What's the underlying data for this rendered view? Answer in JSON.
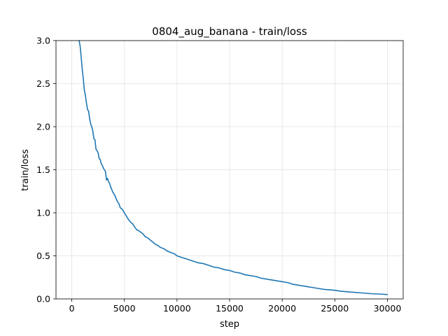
{
  "chart_data": {
    "type": "line",
    "title": "0804_aug_banana - train/loss",
    "xlabel": "step",
    "ylabel": "train/loss",
    "xlim": [
      -1500,
      31500
    ],
    "ylim": [
      0,
      3.0
    ],
    "grid": true,
    "x_ticks": [
      0,
      5000,
      10000,
      15000,
      20000,
      25000,
      30000
    ],
    "y_ticks": [
      0.0,
      0.5,
      1.0,
      1.5,
      2.0,
      2.5,
      3.0
    ],
    "x_tick_labels": [
      "0",
      "5000",
      "10000",
      "15000",
      "20000",
      "25000",
      "30000"
    ],
    "y_tick_labels": [
      "0.0",
      "0.5",
      "1.0",
      "1.5",
      "2.0",
      "2.5",
      "3.0"
    ],
    "series": [
      {
        "color": "#1f77b4",
        "x": [
          700,
          800,
          900,
          1000,
          1100,
          1200,
          1300,
          1400,
          1500,
          1600,
          1700,
          1800,
          1900,
          2000,
          2100,
          2200,
          2300,
          2400,
          2500,
          2600,
          2700,
          2800,
          2900,
          3000,
          3100,
          3200,
          3300,
          3400,
          3500,
          3600,
          3700,
          3800,
          3900,
          4000,
          4100,
          4200,
          4300,
          4400,
          4500,
          4600,
          4700,
          4800,
          4900,
          5000,
          5200,
          5400,
          5600,
          5800,
          6000,
          6200,
          6400,
          6600,
          6800,
          7000,
          7200,
          7400,
          7600,
          7800,
          8000,
          8200,
          8400,
          8600,
          8800,
          9000,
          9200,
          9400,
          9600,
          9800,
          10000,
          10500,
          11000,
          11500,
          12000,
          12500,
          13000,
          13500,
          14000,
          14500,
          15000,
          15500,
          16000,
          16500,
          17000,
          17500,
          18000,
          18500,
          19000,
          19500,
          20000,
          20500,
          21000,
          21500,
          22000,
          22500,
          23000,
          23500,
          24000,
          24500,
          25000,
          25500,
          26000,
          26500,
          27000,
          27500,
          28000,
          28500,
          29000,
          29500,
          30000
        ],
        "y": [
          3.0,
          2.93,
          2.8,
          2.66,
          2.55,
          2.42,
          2.36,
          2.27,
          2.2,
          2.18,
          2.09,
          2.03,
          2.0,
          1.95,
          1.86,
          1.85,
          1.74,
          1.72,
          1.7,
          1.63,
          1.62,
          1.57,
          1.55,
          1.52,
          1.5,
          1.48,
          1.38,
          1.4,
          1.36,
          1.34,
          1.3,
          1.27,
          1.24,
          1.22,
          1.2,
          1.17,
          1.14,
          1.12,
          1.1,
          1.06,
          1.05,
          1.04,
          1.02,
          1.0,
          0.96,
          0.92,
          0.89,
          0.87,
          0.83,
          0.8,
          0.79,
          0.77,
          0.75,
          0.72,
          0.71,
          0.69,
          0.67,
          0.65,
          0.63,
          0.62,
          0.6,
          0.59,
          0.58,
          0.56,
          0.55,
          0.54,
          0.53,
          0.52,
          0.5,
          0.48,
          0.46,
          0.44,
          0.42,
          0.41,
          0.39,
          0.37,
          0.36,
          0.34,
          0.33,
          0.31,
          0.3,
          0.28,
          0.27,
          0.26,
          0.24,
          0.23,
          0.22,
          0.21,
          0.2,
          0.19,
          0.17,
          0.16,
          0.15,
          0.14,
          0.13,
          0.12,
          0.11,
          0.105,
          0.1,
          0.09,
          0.085,
          0.08,
          0.075,
          0.07,
          0.065,
          0.06,
          0.058,
          0.055,
          0.05
        ]
      }
    ]
  }
}
